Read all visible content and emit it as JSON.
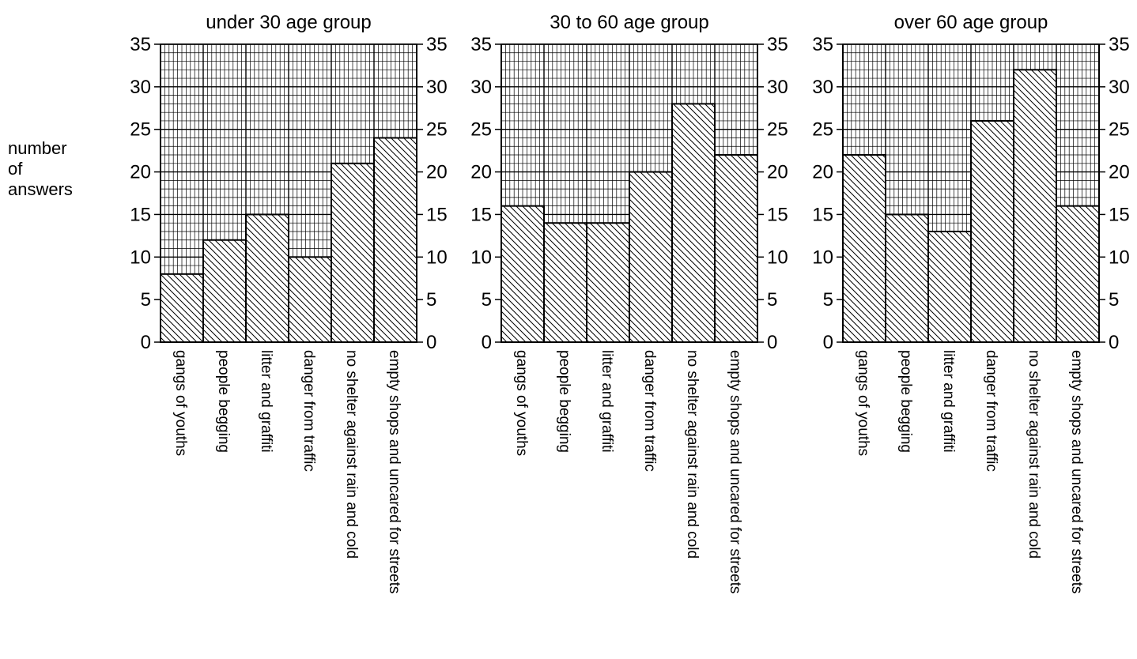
{
  "ylabel": [
    "number",
    "of",
    "answers"
  ],
  "chart_data": [
    {
      "type": "bar",
      "title": "under 30 age group",
      "categories": [
        "gangs of youths",
        "people begging",
        "litter and graffiti",
        "danger from traffic",
        "no shelter against rain and cold",
        "empty shops and uncared for streets"
      ],
      "values": [
        8,
        12,
        15,
        10,
        21,
        24
      ],
      "ylim": [
        0,
        35
      ],
      "yticks": [
        0,
        5,
        10,
        15,
        20,
        25,
        30,
        35
      ],
      "grid": true
    },
    {
      "type": "bar",
      "title": "30 to 60 age group",
      "categories": [
        "gangs of youths",
        "people begging",
        "litter and graffiti",
        "danger from traffic",
        "no shelter against rain and cold",
        "empty shops and uncared for streets"
      ],
      "values": [
        16,
        14,
        14,
        20,
        28,
        22
      ],
      "ylim": [
        0,
        35
      ],
      "yticks": [
        0,
        5,
        10,
        15,
        20,
        25,
        30,
        35
      ],
      "grid": true
    },
    {
      "type": "bar",
      "title": "over 60 age group",
      "categories": [
        "gangs of youths",
        "people begging",
        "litter and graffiti",
        "danger from traffic",
        "no shelter against rain and cold",
        "empty shops and uncared for streets"
      ],
      "values": [
        22,
        15,
        13,
        26,
        32,
        16
      ],
      "ylim": [
        0,
        35
      ],
      "yticks": [
        0,
        5,
        10,
        15,
        20,
        25,
        30,
        35
      ],
      "grid": true
    }
  ]
}
